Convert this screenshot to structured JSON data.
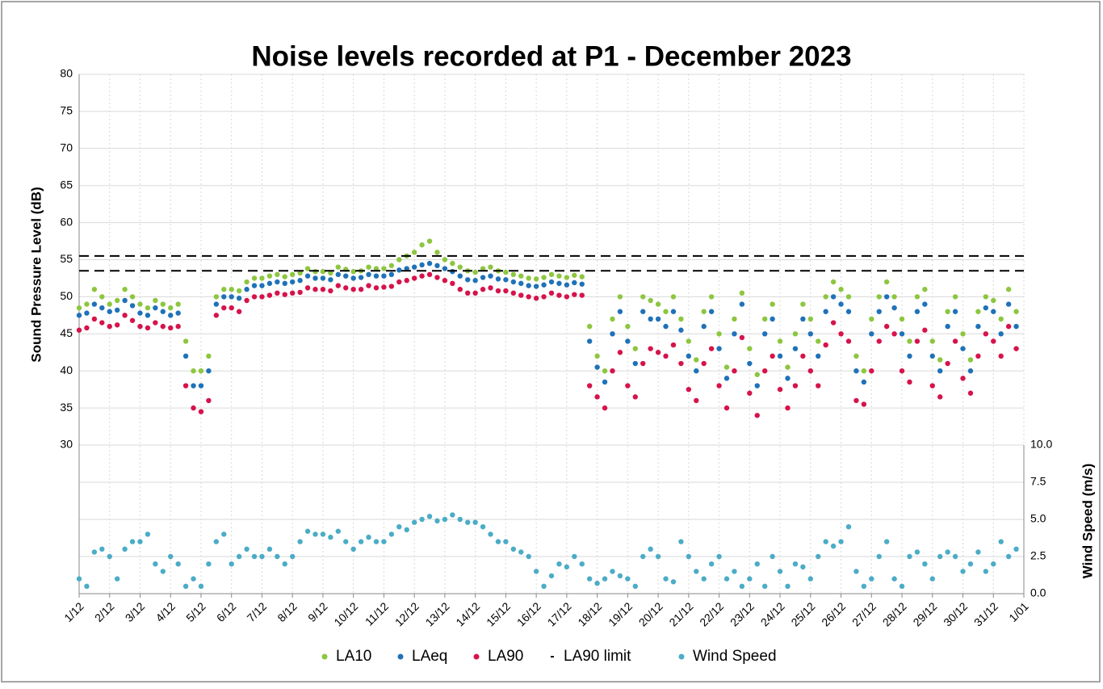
{
  "chart_data": {
    "type": "scatter",
    "title": "Noise levels recorded at P1 - December 2023",
    "y_label": "Sound Pressure Level (dB)",
    "y2_label": "Wind Speed (m/s)",
    "xlim": [
      0,
      31
    ],
    "xticks": [
      {
        "value": 0,
        "label": "1/12"
      },
      {
        "value": 1,
        "label": "2/12"
      },
      {
        "value": 2,
        "label": "3/12"
      },
      {
        "value": 3,
        "label": "4/12"
      },
      {
        "value": 4,
        "label": "5/12"
      },
      {
        "value": 5,
        "label": "6/12"
      },
      {
        "value": 6,
        "label": "7/12"
      },
      {
        "value": 7,
        "label": "8/12"
      },
      {
        "value": 8,
        "label": "9/12"
      },
      {
        "value": 9,
        "label": "10/12"
      },
      {
        "value": 10,
        "label": "11/12"
      },
      {
        "value": 11,
        "label": "12/12"
      },
      {
        "value": 12,
        "label": "13/12"
      },
      {
        "value": 13,
        "label": "14/12"
      },
      {
        "value": 14,
        "label": "15/12"
      },
      {
        "value": 15,
        "label": "16/12"
      },
      {
        "value": 16,
        "label": "17/12"
      },
      {
        "value": 17,
        "label": "18/12"
      },
      {
        "value": 18,
        "label": "19/12"
      },
      {
        "value": 19,
        "label": "20/12"
      },
      {
        "value": 20,
        "label": "21/12"
      },
      {
        "value": 21,
        "label": "22/12"
      },
      {
        "value": 22,
        "label": "23/12"
      },
      {
        "value": 23,
        "label": "24/12"
      },
      {
        "value": 24,
        "label": "25/12"
      },
      {
        "value": 25,
        "label": "26/12"
      },
      {
        "value": 26,
        "label": "27/12"
      },
      {
        "value": 27,
        "label": "28/12"
      },
      {
        "value": 28,
        "label": "29/12"
      },
      {
        "value": 29,
        "label": "30/12"
      },
      {
        "value": 30,
        "label": "31/12"
      },
      {
        "value": 31,
        "label": "1/01"
      }
    ],
    "ylim": [
      30,
      80
    ],
    "yticks": [
      30,
      35,
      40,
      45,
      50,
      55,
      60,
      65,
      70,
      75,
      80
    ],
    "y2lim": [
      0,
      10
    ],
    "y2ticks": [
      {
        "value": 0,
        "label": "0.0"
      },
      {
        "value": 2.5,
        "label": "2.5"
      },
      {
        "value": 5,
        "label": "5.0"
      },
      {
        "value": 7.5,
        "label": "7.5"
      },
      {
        "value": 10,
        "label": "10.0"
      }
    ],
    "grid": true,
    "legend": "bottom",
    "x": [
      0,
      0.25,
      0.5,
      0.75,
      1,
      1.25,
      1.5,
      1.75,
      2,
      2.25,
      2.5,
      2.75,
      3,
      3.25,
      3.5,
      3.75,
      4,
      4.25,
      4.5,
      4.75,
      5,
      5.25,
      5.5,
      5.75,
      6,
      6.25,
      6.5,
      6.75,
      7,
      7.25,
      7.5,
      7.75,
      8,
      8.25,
      8.5,
      8.75,
      9,
      9.25,
      9.5,
      9.75,
      10,
      10.25,
      10.5,
      10.75,
      11,
      11.25,
      11.5,
      11.75,
      12,
      12.25,
      12.5,
      12.75,
      13,
      13.25,
      13.5,
      13.75,
      14,
      14.25,
      14.5,
      14.75,
      15,
      15.25,
      15.5,
      15.75,
      16,
      16.25,
      16.5,
      16.75,
      17,
      17.25,
      17.5,
      17.75,
      18,
      18.25,
      18.5,
      18.75,
      19,
      19.25,
      19.5,
      19.75,
      20,
      20.25,
      20.5,
      20.75,
      21,
      21.25,
      21.5,
      21.75,
      22,
      22.25,
      22.5,
      22.75,
      23,
      23.25,
      23.5,
      23.75,
      24,
      24.25,
      24.5,
      24.75,
      25,
      25.25,
      25.5,
      25.75,
      26,
      26.25,
      26.5,
      26.75,
      27,
      27.25,
      27.5,
      27.75,
      28,
      28.25,
      28.5,
      28.75,
      29,
      29.25,
      29.5,
      29.75,
      30,
      30.25,
      30.5,
      30.75
    ],
    "series": [
      {
        "name": "LA10",
        "color": "#8dc63f",
        "values": [
          48.5,
          49,
          51,
          50,
          49,
          49.5,
          51,
          50,
          49,
          48.5,
          49.5,
          49,
          48.5,
          49,
          44,
          40,
          40,
          42,
          50,
          51,
          51,
          50.8,
          52,
          52.5,
          52.5,
          52.8,
          53,
          52.7,
          53,
          53.2,
          53.8,
          53.4,
          53.4,
          53.2,
          54,
          53.7,
          53.4,
          53.5,
          54,
          53.8,
          53.8,
          54.2,
          55,
          55.5,
          56,
          57,
          57.5,
          56,
          55,
          54.5,
          54,
          53.5,
          53.3,
          53.8,
          54,
          53.5,
          53.3,
          53,
          52.8,
          52.5,
          52.4,
          52.6,
          53,
          52.8,
          52.6,
          52.9,
          52.7,
          46,
          42,
          40,
          47,
          50,
          46,
          43,
          50,
          49.5,
          49,
          48,
          50,
          47,
          44,
          41.5,
          48,
          50,
          45,
          40.5,
          47,
          50.5,
          43,
          39.5,
          47,
          49,
          44,
          40.5,
          45,
          49,
          47,
          44,
          50,
          52,
          51,
          50,
          42,
          40,
          47,
          50,
          52,
          50,
          47,
          44,
          50,
          51,
          44,
          41.5,
          48,
          50,
          45,
          41.5,
          48,
          50,
          49.5,
          47,
          51,
          48
        ]
      },
      {
        "name": "LAeq",
        "color": "#1f72b8",
        "values": [
          47.5,
          47.8,
          49,
          48.5,
          48,
          48.2,
          49.5,
          48.8,
          47.8,
          47.5,
          48.5,
          48,
          47.5,
          47.8,
          42,
          38,
          38,
          40,
          49,
          50,
          50,
          49.8,
          51,
          51.5,
          51.5,
          51.8,
          52,
          51.8,
          52,
          52.2,
          52.8,
          52.5,
          52.5,
          52.3,
          53,
          52.8,
          52.5,
          52.6,
          53,
          52.8,
          52.8,
          53,
          53.6,
          53.8,
          54,
          54.3,
          54.5,
          54.2,
          53.8,
          53.4,
          52.8,
          52.3,
          52.2,
          52.6,
          52.8,
          52.4,
          52.3,
          52,
          51.8,
          51.5,
          51.4,
          51.6,
          52,
          51.8,
          51.6,
          51.9,
          51.7,
          44,
          40.5,
          38.5,
          45,
          48,
          44,
          41,
          48,
          47,
          47,
          46,
          48,
          45.5,
          42,
          40,
          46,
          48,
          43,
          39,
          45,
          49,
          41,
          38,
          45,
          47,
          42,
          39,
          43,
          47,
          45,
          42,
          48,
          50,
          49,
          48,
          40,
          38.5,
          45,
          48,
          50,
          48.5,
          45,
          42,
          48,
          49,
          42,
          40,
          46,
          48,
          43,
          40,
          46,
          48.5,
          48,
          45,
          49,
          46
        ]
      },
      {
        "name": "LA90",
        "color": "#d6134b",
        "values": [
          45.5,
          45.8,
          47,
          46.5,
          46,
          46.2,
          47.5,
          46.8,
          46,
          45.8,
          46.5,
          46,
          45.8,
          46,
          38,
          35,
          34.5,
          36,
          47.5,
          48.5,
          48.5,
          48,
          49.5,
          50,
          50,
          50.2,
          50.5,
          50.3,
          50.5,
          50.6,
          51.2,
          51,
          51,
          50.8,
          51.5,
          51.2,
          51,
          51,
          51.5,
          51.2,
          51.3,
          51.4,
          52,
          52.2,
          52.5,
          52.8,
          53,
          52.6,
          52.2,
          51.8,
          51,
          50.5,
          50.5,
          51,
          51.2,
          50.8,
          50.8,
          50.5,
          50.2,
          50,
          49.8,
          50,
          50.5,
          50.2,
          50,
          50.3,
          50.2,
          38,
          36.5,
          35,
          40,
          42.5,
          38,
          36.5,
          41,
          43,
          42.5,
          42,
          43.5,
          41,
          37.5,
          36,
          41,
          43,
          38,
          35,
          40,
          44.5,
          37,
          34,
          40,
          42,
          37.5,
          35,
          38,
          42,
          40,
          38,
          43.5,
          46.5,
          45,
          44,
          36,
          35.5,
          40,
          44,
          46,
          45,
          40,
          38.5,
          44,
          45.5,
          38,
          36.5,
          41,
          44,
          39,
          37,
          42,
          45,
          44,
          42,
          46,
          43
        ]
      },
      {
        "name": "LA90 limit",
        "color": "#000000",
        "values": [
          55.5,
          53.5
        ]
      },
      {
        "name": "Wind Speed",
        "color": "#4bacc6",
        "axis": "y2",
        "values": [
          1,
          0.5,
          2.8,
          3,
          2.5,
          1,
          3,
          3.5,
          3.5,
          4,
          2,
          1.5,
          2.5,
          2,
          0.5,
          1,
          0.5,
          2,
          3.5,
          4,
          2,
          2.5,
          3,
          2.5,
          2.5,
          3,
          2.5,
          2,
          2.5,
          3.5,
          4.2,
          4,
          4,
          3.8,
          4.2,
          3.5,
          3,
          3.5,
          3.8,
          3.5,
          3.5,
          4,
          4.5,
          4.3,
          4.8,
          5,
          5.2,
          4.9,
          5,
          5.3,
          5,
          4.8,
          4.8,
          4.5,
          4,
          3.5,
          3.5,
          3,
          2.8,
          2.5,
          1.5,
          0.5,
          1.2,
          2,
          1.8,
          2.5,
          2,
          1,
          0.7,
          1,
          1.5,
          1.2,
          1,
          0.5,
          2.5,
          3,
          2.5,
          1,
          0.8,
          3.5,
          2.5,
          1.5,
          1,
          2,
          2.5,
          1,
          1.5,
          0.5,
          1,
          2,
          0.5,
          2.5,
          1.5,
          0.5,
          2,
          1.8,
          1,
          2.5,
          3.5,
          3.2,
          3.5,
          4.5,
          1.5,
          0.5,
          1,
          2.5,
          3.5,
          1,
          0.5,
          2.5,
          2.8,
          2,
          1,
          2.5,
          2.8,
          2.5,
          1.5,
          2,
          2.8,
          1.5,
          2,
          3.5,
          2.5,
          3
        ]
      }
    ]
  }
}
